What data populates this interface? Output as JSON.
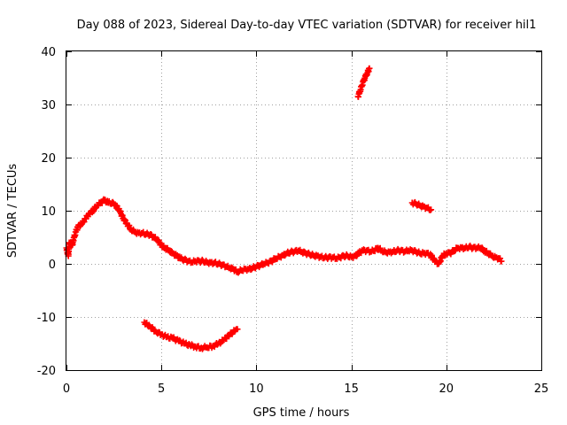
{
  "chart_data": {
    "type": "scatter",
    "title": "Day 088 of 2023, Sidereal Day-to-day VTEC variation (SDTVAR) for receiver hil1",
    "xlabel": "GPS time / hours",
    "ylabel": "SDTVAR / TECUs",
    "xlim": [
      0,
      25
    ],
    "ylim": [
      -20,
      40
    ],
    "x_ticks": [
      0,
      5,
      10,
      15,
      20,
      25
    ],
    "y_ticks": [
      -20,
      -10,
      0,
      10,
      20,
      30,
      40
    ],
    "grid": true,
    "marker": "+",
    "color": "#ff0000",
    "series": [
      {
        "name": "main-track",
        "points": [
          [
            0.0,
            3.0
          ],
          [
            0.1,
            1.5
          ],
          [
            0.15,
            4.0
          ],
          [
            0.3,
            3.5
          ],
          [
            0.4,
            5.0
          ],
          [
            0.5,
            6.0
          ],
          [
            0.6,
            7.0
          ],
          [
            0.8,
            7.5
          ],
          [
            1.0,
            8.5
          ],
          [
            1.2,
            9.5
          ],
          [
            1.4,
            10.0
          ],
          [
            1.6,
            11.0
          ],
          [
            1.8,
            11.5
          ],
          [
            2.0,
            12.0
          ],
          [
            2.2,
            11.5
          ],
          [
            2.4,
            11.5
          ],
          [
            2.6,
            11.0
          ],
          [
            2.8,
            10.0
          ],
          [
            3.0,
            8.5
          ],
          [
            3.2,
            7.5
          ],
          [
            3.4,
            6.5
          ],
          [
            3.6,
            6.0
          ],
          [
            3.8,
            5.8
          ],
          [
            4.0,
            5.8
          ],
          [
            4.2,
            5.6
          ],
          [
            4.4,
            5.5
          ],
          [
            4.6,
            5.0
          ],
          [
            4.8,
            4.5
          ],
          [
            5.0,
            3.5
          ],
          [
            5.2,
            3.0
          ],
          [
            5.4,
            2.5
          ],
          [
            5.6,
            2.0
          ],
          [
            5.8,
            1.5
          ],
          [
            6.0,
            1.0
          ],
          [
            6.2,
            0.8
          ],
          [
            6.4,
            0.5
          ],
          [
            6.6,
            0.3
          ],
          [
            6.8,
            0.5
          ],
          [
            7.0,
            0.5
          ],
          [
            7.2,
            0.5
          ],
          [
            7.4,
            0.3
          ],
          [
            7.6,
            0.2
          ],
          [
            7.8,
            0.2
          ],
          [
            8.0,
            0.0
          ],
          [
            8.2,
            -0.2
          ],
          [
            8.4,
            -0.5
          ],
          [
            8.6,
            -0.8
          ],
          [
            8.8,
            -1.0
          ],
          [
            9.0,
            -1.5
          ],
          [
            9.2,
            -1.2
          ],
          [
            9.4,
            -1.0
          ],
          [
            9.6,
            -1.0
          ],
          [
            9.8,
            -0.8
          ],
          [
            10.0,
            -0.5
          ],
          [
            10.2,
            -0.3
          ],
          [
            10.4,
            0.0
          ],
          [
            10.6,
            0.2
          ],
          [
            10.8,
            0.5
          ],
          [
            11.0,
            1.0
          ],
          [
            11.2,
            1.3
          ],
          [
            11.4,
            1.6
          ],
          [
            11.6,
            2.0
          ],
          [
            11.8,
            2.2
          ],
          [
            12.0,
            2.3
          ],
          [
            12.2,
            2.5
          ],
          [
            12.4,
            2.2
          ],
          [
            12.6,
            2.0
          ],
          [
            12.8,
            1.8
          ],
          [
            13.0,
            1.6
          ],
          [
            13.2,
            1.5
          ],
          [
            13.4,
            1.3
          ],
          [
            13.6,
            1.2
          ],
          [
            13.8,
            1.2
          ],
          [
            14.0,
            1.2
          ],
          [
            14.2,
            1.0
          ],
          [
            14.4,
            1.2
          ],
          [
            14.6,
            1.5
          ],
          [
            14.8,
            1.5
          ],
          [
            15.0,
            1.3
          ],
          [
            15.2,
            1.5
          ],
          [
            15.4,
            2.0
          ],
          [
            15.6,
            2.5
          ],
          [
            15.8,
            2.5
          ],
          [
            16.0,
            2.3
          ],
          [
            16.2,
            2.5
          ],
          [
            16.4,
            3.0
          ],
          [
            16.6,
            2.5
          ],
          [
            16.8,
            2.2
          ],
          [
            17.0,
            2.2
          ],
          [
            17.2,
            2.3
          ],
          [
            17.4,
            2.5
          ],
          [
            17.6,
            2.5
          ],
          [
            17.8,
            2.3
          ],
          [
            18.0,
            2.5
          ],
          [
            18.2,
            2.5
          ],
          [
            18.4,
            2.3
          ],
          [
            18.6,
            2.0
          ],
          [
            18.8,
            2.0
          ],
          [
            19.0,
            2.0
          ],
          [
            19.2,
            1.5
          ],
          [
            19.4,
            0.5
          ],
          [
            19.6,
            0.0
          ],
          [
            19.8,
            1.5
          ],
          [
            20.0,
            2.0
          ],
          [
            20.2,
            2.0
          ],
          [
            20.4,
            2.5
          ],
          [
            20.6,
            3.0
          ],
          [
            20.8,
            3.0
          ],
          [
            21.0,
            3.0
          ],
          [
            21.2,
            3.2
          ],
          [
            21.4,
            3.0
          ],
          [
            21.6,
            3.0
          ],
          [
            21.8,
            3.0
          ],
          [
            22.0,
            2.5
          ],
          [
            22.2,
            2.0
          ],
          [
            22.4,
            1.5
          ],
          [
            22.6,
            1.2
          ],
          [
            22.8,
            1.0
          ],
          [
            22.9,
            0.5
          ]
        ]
      },
      {
        "name": "lower-arc",
        "points": [
          [
            4.1,
            -11.0
          ],
          [
            4.4,
            -11.8
          ],
          [
            4.7,
            -12.7
          ],
          [
            5.0,
            -13.3
          ],
          [
            5.3,
            -13.8
          ],
          [
            5.6,
            -14.0
          ],
          [
            5.9,
            -14.5
          ],
          [
            6.2,
            -15.0
          ],
          [
            6.5,
            -15.3
          ],
          [
            6.8,
            -15.6
          ],
          [
            7.1,
            -15.8
          ],
          [
            7.4,
            -15.7
          ],
          [
            7.7,
            -15.5
          ],
          [
            8.0,
            -15.0
          ],
          [
            8.3,
            -14.3
          ],
          [
            8.6,
            -13.3
          ],
          [
            8.9,
            -12.5
          ],
          [
            9.0,
            -12.3
          ]
        ]
      },
      {
        "name": "upper-spike",
        "points": [
          [
            15.35,
            31.5
          ],
          [
            15.45,
            32.5
          ],
          [
            15.55,
            33.5
          ],
          [
            15.65,
            34.5
          ],
          [
            15.75,
            35.3
          ],
          [
            15.85,
            36.0
          ],
          [
            15.95,
            36.8
          ]
        ]
      },
      {
        "name": "short-segment",
        "points": [
          [
            18.2,
            11.5
          ],
          [
            18.4,
            11.3
          ],
          [
            18.6,
            11.0
          ],
          [
            18.8,
            10.8
          ],
          [
            19.0,
            10.5
          ],
          [
            19.2,
            10.2
          ]
        ]
      }
    ]
  }
}
